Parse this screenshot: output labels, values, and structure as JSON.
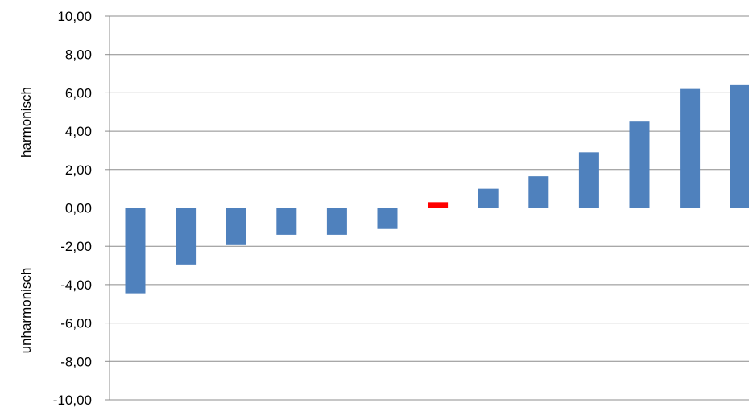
{
  "chart_data": {
    "type": "bar",
    "ylabel_upper": "harmonisch",
    "ylabel_lower": "unharmonisch",
    "ylim": [
      -10,
      10
    ],
    "y_ticks": [
      "10,00",
      "8,00",
      "6,00",
      "4,00",
      "2,00",
      "0,00",
      "-2,00",
      "-4,00",
      "-6,00",
      "-8,00",
      "-10,00"
    ],
    "grid": true,
    "values": [
      -4.45,
      -2.95,
      -1.9,
      -1.4,
      -1.4,
      -1.1,
      0.3,
      1.0,
      1.65,
      2.9,
      4.5,
      6.2,
      6.4
    ],
    "highlight_index": 6,
    "colors": {
      "bar": "#4f81bd",
      "highlight": "#ff0000",
      "grid": "#8c8c8c",
      "axis": "#8c8c8c"
    }
  }
}
